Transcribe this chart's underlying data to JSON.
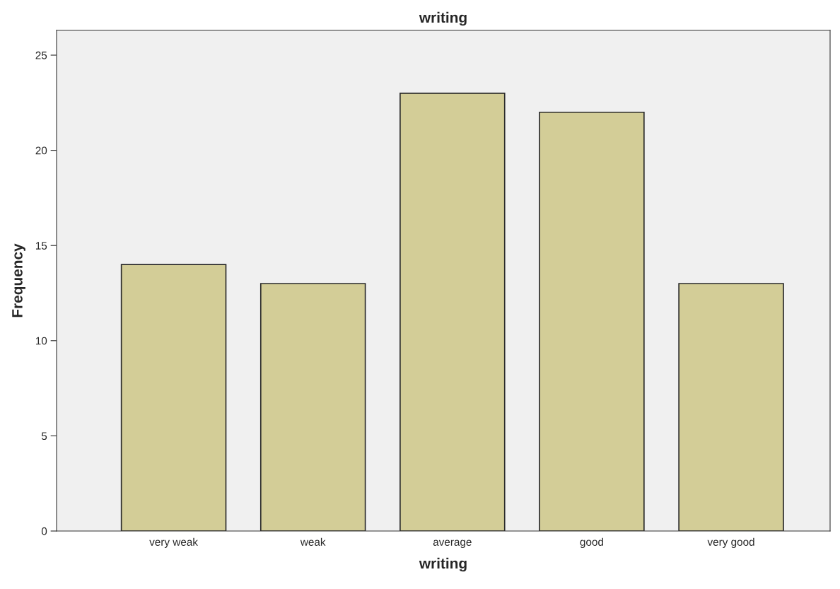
{
  "chart_data": {
    "type": "bar",
    "title": "writing",
    "xlabel": "writing",
    "ylabel": "Frequency",
    "categories": [
      "very weak",
      "weak",
      "average",
      "good",
      "very good"
    ],
    "values": [
      14,
      13,
      23,
      22,
      13
    ],
    "color": "#d3cd97",
    "ylim": [
      0,
      26.3
    ],
    "yticks": [
      0,
      5,
      10,
      15,
      20,
      25
    ],
    "grid": false
  }
}
